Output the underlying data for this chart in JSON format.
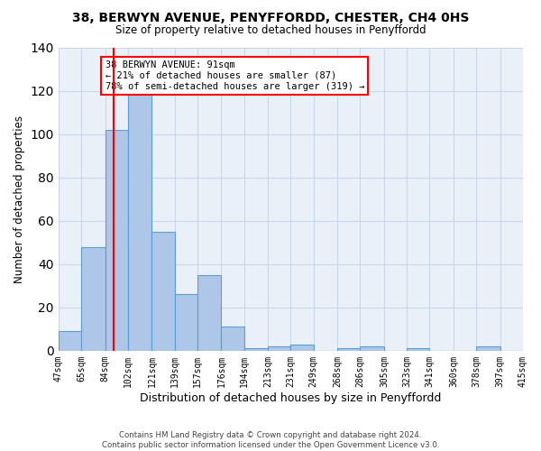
{
  "title1": "38, BERWYN AVENUE, PENYFFORDD, CHESTER, CH4 0HS",
  "title2": "Size of property relative to detached houses in Penyffordd",
  "xlabel": "Distribution of detached houses by size in Penyffordd",
  "ylabel": "Number of detached properties",
  "footnote1": "Contains HM Land Registry data © Crown copyright and database right 2024.",
  "footnote2": "Contains public sector information licensed under the Open Government Licence v3.0.",
  "bin_labels": [
    "47sqm",
    "65sqm",
    "84sqm",
    "102sqm",
    "121sqm",
    "139sqm",
    "157sqm",
    "176sqm",
    "194sqm",
    "213sqm",
    "231sqm",
    "249sqm",
    "268sqm",
    "286sqm",
    "305sqm",
    "323sqm",
    "341sqm",
    "360sqm",
    "378sqm",
    "397sqm",
    "415sqm"
  ],
  "bar_values": [
    9,
    48,
    102,
    121,
    55,
    26,
    35,
    11,
    1,
    2,
    3,
    0,
    1,
    2,
    0,
    1,
    0,
    0,
    2,
    0
  ],
  "bar_color": "#aec6e8",
  "bar_edge_color": "#5a9fd4",
  "grid_color": "#c8d8e8",
  "bg_color": "#eaf0f8",
  "red_line_x": 91,
  "annotation_text": "38 BERWYN AVENUE: 91sqm\n← 21% of detached houses are smaller (87)\n78% of semi-detached houses are larger (319) →",
  "annotation_box_color": "white",
  "annotation_box_edge": "red",
  "ylim": [
    0,
    140
  ],
  "yticks": [
    0,
    20,
    40,
    60,
    80,
    100,
    120,
    140
  ]
}
